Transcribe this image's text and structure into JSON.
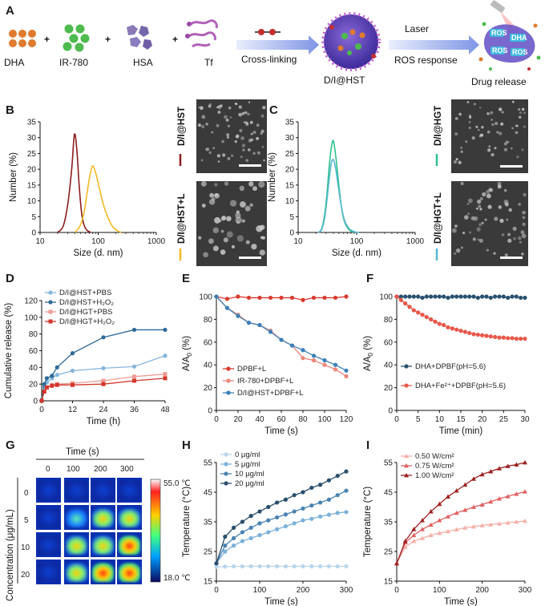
{
  "panel_labels": [
    "A",
    "B",
    "C",
    "D",
    "E",
    "F",
    "G",
    "H",
    "I"
  ],
  "schematic": {
    "components": [
      "DHA",
      "IR-780",
      "HSA",
      "Tf"
    ],
    "plus": "+",
    "step1": "Cross-linking",
    "product": "D/I@HST",
    "laser": "Laser",
    "ros_response": "ROS response",
    "release": "Drug release",
    "particle_tags": [
      "ROS",
      "DHA",
      "ROS",
      "ROS"
    ]
  },
  "colors": {
    "dark_red": "#8c1d1d",
    "yellow": "#f2b824",
    "green": "#2ec28c",
    "light_blue": "#56b6cf",
    "blue1": "#9fc6e4",
    "blue2": "#2e6a98",
    "red1": "#f0a0a0",
    "red2": "#d2362b",
    "navy": "#28506f",
    "coral": "#e8574a"
  },
  "tem_images": {
    "B_top": "D/I@HST",
    "B_bottom": "D/I@HST+L",
    "C_top": "D/I@HGT",
    "C_bottom": "D/I@HGT+L"
  },
  "thermal": {
    "time_title": "Time (s)",
    "times": [
      "0",
      "100",
      "200",
      "300"
    ],
    "conc_label": "Concentration (μg/mL)",
    "concs": [
      "0",
      "5",
      "10",
      "20"
    ],
    "scale_max": "55.0 ℃",
    "scale_min": "18.0 ℃"
  },
  "chart_data": [
    {
      "panel": "B",
      "type": "line",
      "xlabel": "Size (d. nm)",
      "ylabel": "Number (%)",
      "xscale": "log",
      "xlim": [
        10,
        1000
      ],
      "ylim": [
        0,
        35
      ],
      "xticks": [
        "10",
        "100",
        "1000"
      ],
      "yticks": [
        "0",
        "5",
        "10",
        "15",
        "20",
        "25",
        "30",
        "35"
      ],
      "series": [
        {
          "name": "D/I@HST",
          "color": "#8c1d1d",
          "x": [
            20,
            25,
            30,
            35,
            39,
            43,
            47,
            52,
            58,
            65,
            75
          ],
          "y": [
            0,
            2,
            9,
            20,
            31,
            26,
            15,
            6,
            2,
            0.6,
            0
          ]
        },
        {
          "name": "D/I@HST+L",
          "color": "#f2b824",
          "x": [
            40,
            50,
            58,
            65,
            72,
            80,
            90,
            105,
            122,
            145,
            175,
            210,
            250
          ],
          "y": [
            0,
            2.5,
            7,
            13,
            18,
            21,
            19,
            14,
            9,
            5,
            2,
            0.6,
            0
          ]
        }
      ]
    },
    {
      "panel": "C",
      "type": "line",
      "xlabel": "Size (d. nm)",
      "ylabel": "Number (%)",
      "xscale": "log",
      "xlim": [
        10,
        1000
      ],
      "ylim": [
        0,
        35
      ],
      "xticks": [
        "10",
        "100",
        "1000"
      ],
      "yticks": [
        "0",
        "5",
        "10",
        "15",
        "20",
        "25",
        "30",
        "35"
      ],
      "series": [
        {
          "name": "D/I@HGT",
          "color": "#2ec28c",
          "x": [
            22,
            25,
            28,
            31,
            34,
            37,
            40,
            44,
            49,
            55,
            63,
            75,
            90
          ],
          "y": [
            0,
            1,
            5,
            12,
            21,
            27,
            29,
            24,
            16,
            8,
            3,
            0.8,
            0
          ]
        },
        {
          "name": "D/I@HGT+L",
          "color": "#56b6cf",
          "x": [
            22,
            25,
            28,
            31,
            34,
            37,
            40,
            44,
            49,
            55,
            63,
            75,
            90,
            110
          ],
          "y": [
            0,
            0.8,
            4,
            10,
            17,
            22,
            23,
            20,
            14,
            8,
            3.5,
            1.2,
            0.3,
            0
          ]
        }
      ]
    },
    {
      "panel": "D",
      "type": "line",
      "xlabel": "Time (h)",
      "ylabel": "Cumulative release (%)",
      "xlim": [
        0,
        48
      ],
      "ylim": [
        0,
        120
      ],
      "xticks": [
        "0",
        "12",
        "24",
        "36",
        "48"
      ],
      "yticks": [
        "0",
        "20",
        "40",
        "60",
        "80",
        "100",
        "120"
      ],
      "series": [
        {
          "name": "D/I@HST+PBS",
          "legend": "D/I@HST+PBS",
          "marker": "circle",
          "color": "#86b6dc",
          "x": [
            0,
            1,
            2,
            4,
            6,
            12,
            24,
            36,
            48
          ],
          "y": [
            1,
            17,
            22,
            27,
            31,
            36,
            39,
            41,
            54
          ]
        },
        {
          "name": "D/I@HST+H2O2",
          "legend": "D/I@HST+H₂O₂",
          "marker": "circle",
          "color": "#2e6a98",
          "x": [
            0,
            1,
            2,
            4,
            6,
            12,
            24,
            36,
            48
          ],
          "y": [
            1,
            20,
            27,
            30,
            40,
            57,
            76,
            85,
            85
          ]
        },
        {
          "name": "D/I@HGT+PBS",
          "legend": "D/I@HGT+PBS",
          "marker": "square",
          "color": "#ef9c94",
          "x": [
            0,
            1,
            2,
            4,
            6,
            12,
            24,
            36,
            48
          ],
          "y": [
            0,
            11,
            16,
            19,
            20,
            21,
            24,
            29,
            32
          ]
        },
        {
          "name": "D/I@HGT+H2O2",
          "legend": "D/I@HGT+H₂O₂",
          "marker": "square",
          "color": "#d2362b",
          "x": [
            0,
            1,
            2,
            4,
            6,
            12,
            24,
            36,
            48
          ],
          "y": [
            0,
            11,
            16,
            18,
            19,
            19,
            20,
            24,
            27
          ]
        }
      ]
    },
    {
      "panel": "E",
      "type": "line",
      "xlabel": "Time (s)",
      "ylabel": "A/A0 (%)",
      "xlim": [
        0,
        120
      ],
      "ylim": [
        0,
        100
      ],
      "xticks": [
        "0",
        "20",
        "40",
        "60",
        "80",
        "100",
        "120"
      ],
      "yticks": [
        "0",
        "20",
        "40",
        "60",
        "80",
        "100"
      ],
      "series": [
        {
          "name": "DPBF+L",
          "marker": "circle",
          "color": "#d93a2c",
          "x": [
            0,
            10,
            20,
            30,
            40,
            50,
            60,
            70,
            80,
            90,
            100,
            110,
            120
          ],
          "y": [
            100,
            98,
            100,
            99,
            99,
            99,
            99,
            99,
            97,
            99,
            99,
            99,
            100
          ]
        },
        {
          "name": "IR-780+DPBF+L",
          "marker": "circle",
          "color": "#ee8578",
          "x": [
            0,
            10,
            20,
            30,
            40,
            50,
            60,
            70,
            80,
            90,
            100,
            110,
            120
          ],
          "y": [
            100,
            90,
            84,
            77,
            75,
            70,
            62,
            57,
            46,
            44,
            40,
            36,
            30
          ]
        },
        {
          "name": "D/I@HST+DPBF+L",
          "marker": "circle",
          "color": "#3b7fb8",
          "x": [
            0,
            10,
            20,
            30,
            40,
            50,
            60,
            70,
            80,
            90,
            100,
            110,
            120
          ],
          "y": [
            100,
            90,
            83,
            77,
            75,
            69,
            62,
            57,
            53,
            48,
            44,
            40,
            35
          ]
        }
      ]
    },
    {
      "panel": "F",
      "type": "line",
      "xlabel": "Time (min)",
      "ylabel": "A/A0 (%)",
      "xlim": [
        0,
        30
      ],
      "ylim": [
        0,
        100
      ],
      "xticks": [
        "0",
        "5",
        "10",
        "15",
        "20",
        "25",
        "30"
      ],
      "yticks": [
        "0",
        "20",
        "40",
        "60",
        "80",
        "100"
      ],
      "series": [
        {
          "name": "DHA+DPBF(pH=5.6)",
          "legend": "DHA+DPBF(pH=5.6)",
          "marker": "circle",
          "color": "#28506f",
          "x": [
            0,
            1,
            2,
            3,
            4,
            5,
            6,
            7,
            8,
            9,
            10,
            11,
            12,
            13,
            14,
            15,
            16,
            17,
            18,
            19,
            20,
            21,
            22,
            23,
            24,
            25,
            26,
            27,
            28,
            29,
            30
          ],
          "y": [
            100,
            100,
            100,
            100,
            100,
            100,
            99,
            100,
            100,
            100,
            100,
            100,
            99,
            100,
            100,
            100,
            100,
            100,
            100,
            99,
            100,
            100,
            99,
            100,
            100,
            100,
            99,
            100,
            100,
            99,
            99
          ]
        },
        {
          "name": "DHA+Fe2++DPBF(pH=5.6)",
          "legend": "DHA+Fe²⁺+DPBF(pH=5.6)",
          "marker": "circle",
          "color": "#e8574a",
          "x": [
            0,
            1,
            2,
            3,
            4,
            5,
            6,
            7,
            8,
            9,
            10,
            11,
            12,
            13,
            14,
            15,
            16,
            17,
            18,
            19,
            20,
            21,
            22,
            23,
            24,
            25,
            26,
            27,
            28,
            29,
            30
          ],
          "y": [
            100,
            97,
            94,
            91,
            88,
            86,
            84,
            82,
            80,
            78,
            76,
            75,
            73,
            72,
            71,
            70,
            69,
            68,
            67,
            66.5,
            66,
            65.5,
            65,
            64.5,
            64,
            64,
            63.5,
            63.5,
            63,
            63,
            63
          ]
        }
      ]
    },
    {
      "panel": "H",
      "type": "line",
      "xlabel": "Time (s)",
      "ylabel": "Temperature (°C)",
      "xlim": [
        0,
        300
      ],
      "ylim": [
        15,
        55
      ],
      "xticks": [
        "0",
        "100",
        "200",
        "300"
      ],
      "yticks": [
        "15",
        "25",
        "35",
        "45",
        "55"
      ],
      "series": [
        {
          "name": "0 μg/ml",
          "marker": "circle",
          "color": "#b9d6ec",
          "x": [
            0,
            20,
            40,
            60,
            80,
            100,
            120,
            140,
            160,
            180,
            200,
            220,
            240,
            260,
            280,
            300
          ],
          "y": [
            19.8,
            19.9,
            20,
            20,
            20,
            20,
            20,
            20,
            20,
            20,
            20,
            20,
            20,
            20,
            20,
            20
          ]
        },
        {
          "name": "5 μg/ml",
          "marker": "circle",
          "color": "#7cb1d8",
          "x": [
            0,
            20,
            40,
            60,
            80,
            100,
            120,
            140,
            160,
            180,
            200,
            220,
            240,
            260,
            280,
            300
          ],
          "y": [
            21,
            25,
            27,
            28.5,
            29.5,
            30.5,
            31.5,
            32.5,
            33.5,
            34.5,
            35.5,
            36,
            36.8,
            37.4,
            38,
            38.3
          ]
        },
        {
          "name": "10 μg/ml",
          "marker": "circle",
          "color": "#4a83b2",
          "x": [
            0,
            20,
            40,
            60,
            80,
            100,
            120,
            140,
            160,
            180,
            200,
            220,
            240,
            260,
            280,
            300
          ],
          "y": [
            21,
            27,
            29.5,
            31.5,
            33,
            34.5,
            35.5,
            36.5,
            37.5,
            38.5,
            39.5,
            40.5,
            41.5,
            42.5,
            44,
            45.5
          ]
        },
        {
          "name": "20 μg/ml",
          "marker": "circle",
          "color": "#2b4f6d",
          "x": [
            0,
            20,
            40,
            60,
            80,
            100,
            120,
            140,
            160,
            180,
            200,
            220,
            240,
            260,
            280,
            300
          ],
          "y": [
            21,
            30,
            33,
            35,
            37,
            38.5,
            40,
            41.5,
            42.5,
            44,
            45,
            46.5,
            47.5,
            49,
            50.5,
            52
          ]
        }
      ]
    },
    {
      "panel": "I",
      "type": "line",
      "xlabel": "Time (s)",
      "ylabel": "Temperature (°C)",
      "xlim": [
        0,
        300
      ],
      "ylim": [
        15,
        55
      ],
      "xticks": [
        "0",
        "100",
        "200",
        "300"
      ],
      "yticks": [
        "15",
        "25",
        "35",
        "45",
        "55"
      ],
      "series": [
        {
          "name": "0.50 W/cm2",
          "legend": "0.50 W/cm²",
          "marker": "triangle",
          "color": "#f4b0a8",
          "x": [
            0,
            20,
            40,
            60,
            80,
            100,
            120,
            140,
            160,
            180,
            200,
            220,
            240,
            260,
            280,
            300
          ],
          "y": [
            21,
            26.5,
            28.5,
            29.5,
            30.5,
            31.2,
            31.8,
            32.4,
            33,
            33.4,
            33.8,
            34.1,
            34.4,
            34.7,
            35,
            35.3
          ]
        },
        {
          "name": "0.75 W/cm2",
          "legend": "0.75 W/cm²",
          "marker": "triangle",
          "color": "#e06060",
          "x": [
            0,
            20,
            40,
            60,
            80,
            100,
            120,
            140,
            160,
            180,
            200,
            220,
            240,
            260,
            280,
            300
          ],
          "y": [
            21,
            28,
            30.5,
            32.5,
            34,
            35.5,
            36.8,
            38,
            39,
            40,
            40.8,
            41.8,
            42.8,
            43.6,
            44.4,
            45.2
          ]
        },
        {
          "name": "1.00 W/cm2",
          "legend": "1.00 W/cm²",
          "marker": "triangle",
          "color": "#9e1f1f",
          "x": [
            0,
            20,
            40,
            60,
            80,
            100,
            120,
            140,
            160,
            180,
            200,
            220,
            240,
            260,
            280,
            300
          ],
          "y": [
            21,
            28.5,
            32.5,
            35.5,
            38.5,
            41,
            43.5,
            45.5,
            47.5,
            49.5,
            51,
            52,
            53,
            53.8,
            54.3,
            55
          ]
        }
      ]
    }
  ]
}
